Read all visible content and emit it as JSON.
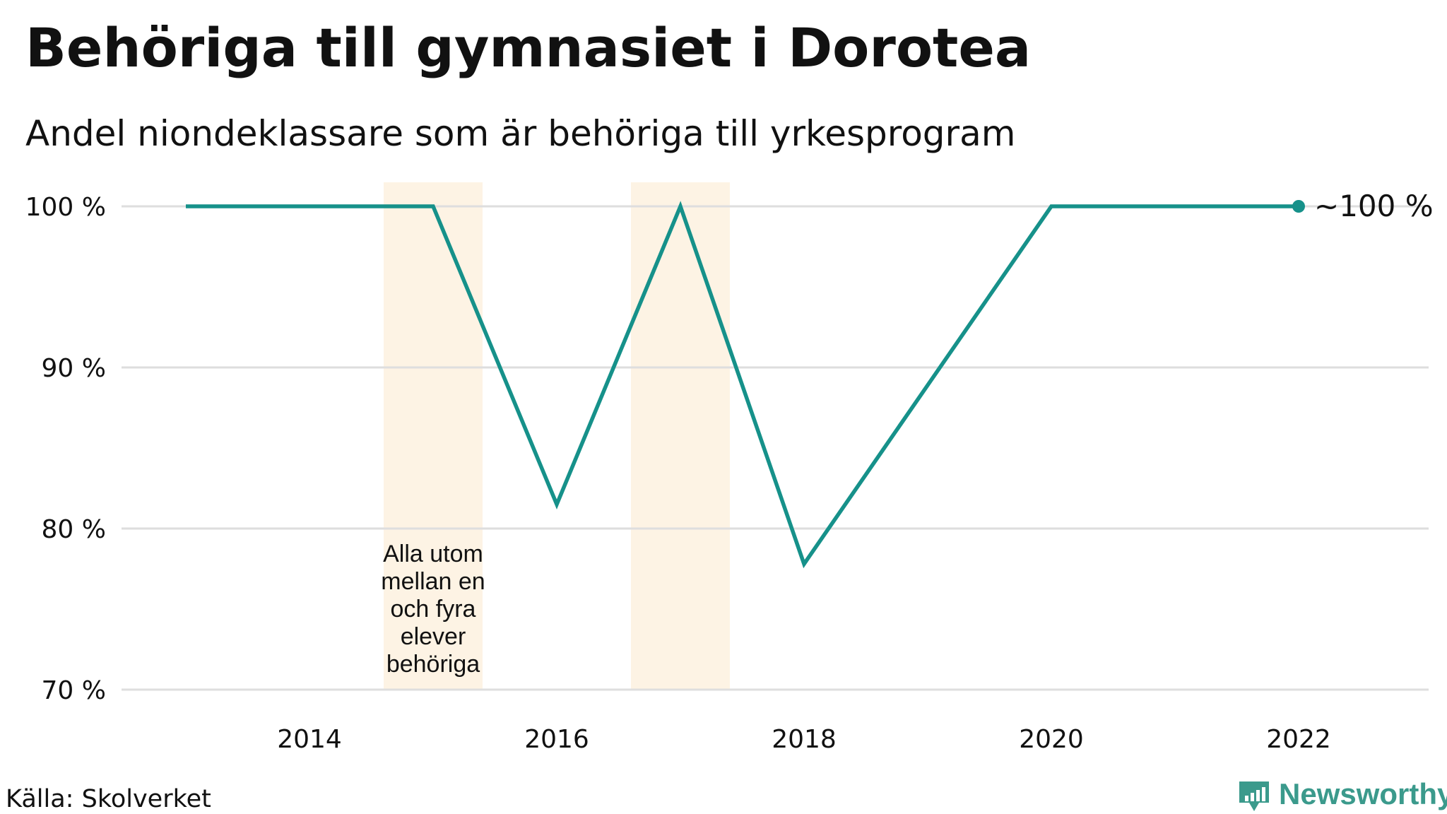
{
  "chart_data": {
    "type": "line",
    "title": "Behöriga till gymnasiet i Dorotea",
    "subtitle": "Andel niondeklassare som är behöriga till yrkesprogram",
    "x": [
      2013,
      2014,
      2015,
      2016,
      2017,
      2018,
      2019,
      2020,
      2021,
      2022
    ],
    "series": [
      {
        "values": [
          100,
          100,
          100,
          81.5,
          100,
          77.8,
          88.9,
          100,
          100,
          100
        ]
      }
    ],
    "xlim": [
      2012,
      2023
    ],
    "ylim": [
      70,
      101.5
    ],
    "x_ticks": [
      2014,
      2016,
      2018,
      2020,
      2022
    ],
    "x_tick_labels": [
      "2014",
      "2016",
      "2018",
      "2020",
      "2022"
    ],
    "y_ticks": [
      70,
      80,
      90,
      100
    ],
    "y_tick_labels": [
      "70 %",
      "80 %",
      "90 %",
      "100 %"
    ],
    "highlights": [
      {
        "from": 2014.6,
        "to": 2015.4,
        "label_lines": [
          "Alla utom",
          "mellan en",
          "och fyra",
          "elever",
          "behöriga"
        ]
      },
      {
        "from": 2016.6,
        "to": 2017.4,
        "label_lines": []
      }
    ],
    "end_label": "~100 %",
    "grid": true,
    "xlabel": "",
    "ylabel": "",
    "colors": {
      "line": "#16918a",
      "highlight": "#fdf3e4",
      "grid": "#dedede"
    }
  },
  "source": "Källa: Skolverket",
  "brand": {
    "name": "Newsworthy",
    "color": "#3b9a8c",
    "icon": "bar-chart-icon"
  }
}
